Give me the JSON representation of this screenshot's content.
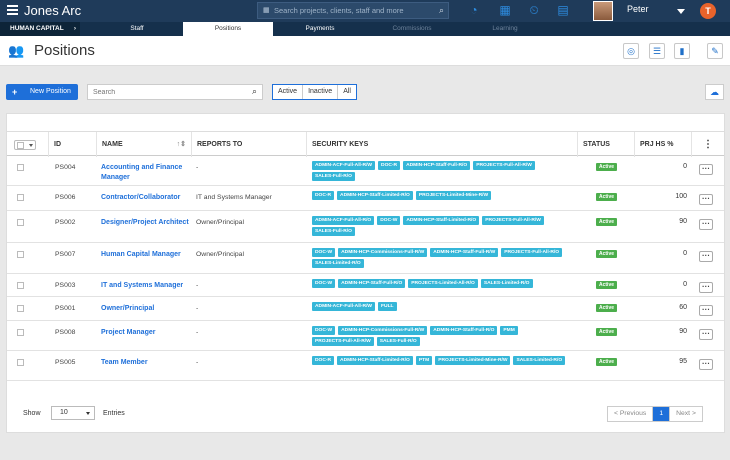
{
  "topbar": {
    "brand": "Jones Arc",
    "search_placeholder": "Search projects, clients, staff and more",
    "user_name": "Peter",
    "orb_letter": "T"
  },
  "subnav": {
    "crumb": "HUMAN CAPITAL",
    "crumb_arrow": "›",
    "tabs": [
      {
        "label": "Staff",
        "state": "normal"
      },
      {
        "label": "Positions",
        "state": "active"
      },
      {
        "label": "Payments",
        "state": "normal"
      },
      {
        "label": "Commissions",
        "state": "dim"
      },
      {
        "label": "Learning",
        "state": "dim"
      }
    ]
  },
  "page": {
    "title": "Positions"
  },
  "toolbar": {
    "new_label": "New Position",
    "search_placeholder": "Search",
    "filters": [
      "Active",
      "Inactive",
      "All"
    ]
  },
  "table": {
    "headers": {
      "id": "ID",
      "name": "NAME",
      "reports": "REPORTS TO",
      "keys": "SECURITY KEYS",
      "status": "STATUS",
      "prj": "PRJ HS %"
    },
    "rows": [
      {
        "id": "PS004",
        "name": "Accounting and Finance Manager",
        "reports": "-",
        "keys": [
          "ADMIN-ACF-Full-All-R/W",
          "DOC-R",
          "ADMIN-HCP-Staff-Full-R/O",
          "PROJECTS-Full-All-R/W",
          "SALES-Full-R/O"
        ],
        "status": "Active",
        "prj": "0"
      },
      {
        "id": "PS006",
        "name": "Contractor/Collaborator",
        "reports": "IT and Systems Manager",
        "keys": [
          "DOC-R",
          "ADMIN-HCP-Staff-Limited-R/O",
          "PROJECTS-Limited-Mine-R/W"
        ],
        "status": "Active",
        "prj": "100"
      },
      {
        "id": "PS002",
        "name": "Designer/Project Architect",
        "reports": "Owner/Principal",
        "keys": [
          "ADMIN-ACF-Full-All-R/O",
          "DOC-W",
          "ADMIN-HCP-Staff-Limited-R/O",
          "PROJECTS-Full-All-R/W",
          "SALES-Full-R/O"
        ],
        "status": "Active",
        "prj": "90"
      },
      {
        "id": "PS007",
        "name": "Human Capital Manager",
        "reports": "Owner/Principal",
        "keys": [
          "DOC-W",
          "ADMIN-HCP-Commissions-Full-R/W",
          "ADMIN-HCP-Staff-Full-R/W",
          "PROJECTS-Full-All-R/O",
          "SALES-Limited-R/O"
        ],
        "status": "Active",
        "prj": "0"
      },
      {
        "id": "PS003",
        "name": "IT and Systems Manager",
        "reports": "-",
        "keys": [
          "DOC-W",
          "ADMIN-HCP-Staff-Full-R/O",
          "PROJECTS-Limited-All-R/O",
          "SALES-Limited-R/O"
        ],
        "status": "Active",
        "prj": "0"
      },
      {
        "id": "PS001",
        "name": "Owner/Principal",
        "reports": "-",
        "keys": [
          "ADMIN-ACF-Full-All-R/W",
          "FULL"
        ],
        "status": "Active",
        "prj": "60"
      },
      {
        "id": "PS008",
        "name": "Project Manager",
        "reports": "-",
        "keys": [
          "DOC-W",
          "ADMIN-HCP-Commissions-Full-R/W",
          "ADMIN-HCP-Staff-Full-R/O",
          "PMM",
          "PROJECTS-Full-All-R/W",
          "SALES-Full-R/O"
        ],
        "status": "Active",
        "prj": "90"
      },
      {
        "id": "PS005",
        "name": "Team Member",
        "reports": "-",
        "keys": [
          "DOC-R",
          "ADMIN-HCP-Staff-Limited-R/O",
          "PTM",
          "PROJECTS-Limited-Mine-R/W",
          "SALES-Limited-R/O"
        ],
        "status": "Active",
        "prj": "95"
      }
    ]
  },
  "footer": {
    "show": "Show",
    "per_page": "10",
    "entries": "Entries",
    "prev": "< Previous",
    "page": "1",
    "next": "Next >"
  },
  "colors": {
    "accent": "#1e6fd9",
    "topbar": "#1f3b5a",
    "key_badge": "#35b6d8",
    "active_badge": "#4cae4c"
  },
  "icons": [
    "menu-icon",
    "search-icon",
    "clock-icon",
    "calendar-icon",
    "timer-icon",
    "bell-icon",
    "users-icon",
    "dashboard-icon",
    "list-icon",
    "chart-icon",
    "pin-icon",
    "cloud-download-icon",
    "more-icon"
  ]
}
